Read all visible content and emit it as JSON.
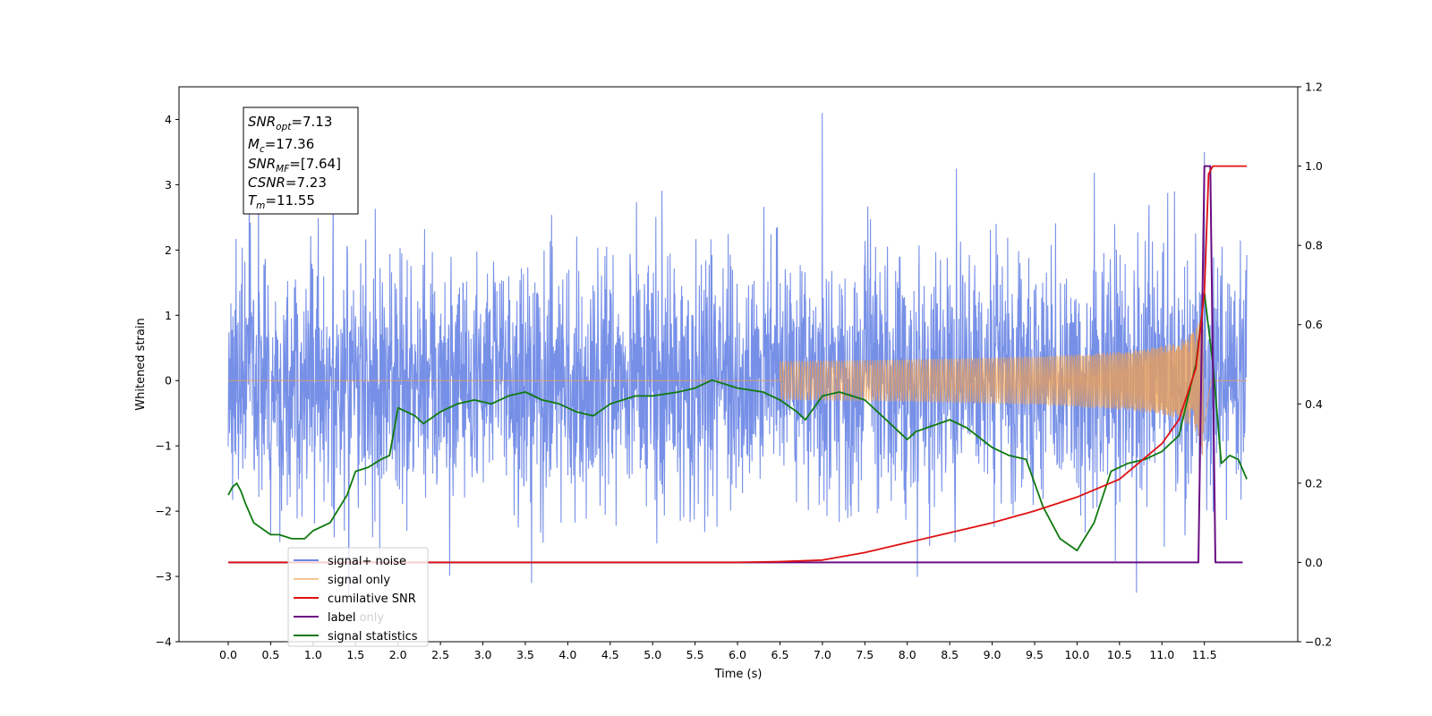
{
  "chart_data": {
    "type": "line",
    "xlabel": "Time (s)",
    "ylabel": "Whitened strain",
    "xlim": [
      -0.58,
      12.6
    ],
    "ylim": [
      -4,
      4.5
    ],
    "y2lim": [
      -0.2,
      1.2
    ],
    "grid": false,
    "legend_position": "lower-left",
    "x_ticks": [
      "0.0",
      "0.5",
      "1.0",
      "1.5",
      "2.0",
      "2.5",
      "3.0",
      "3.5",
      "4.0",
      "4.5",
      "5.0",
      "5.5",
      "6.0",
      "6.5",
      "7.0",
      "7.5",
      "8.0",
      "8.5",
      "9.0",
      "9.5",
      "10.0",
      "10.5",
      "11.0",
      "11.5"
    ],
    "y_ticks": [
      "4",
      "3",
      "2",
      "1",
      "0",
      "−1",
      "−2",
      "−3",
      "−4"
    ],
    "y2_ticks": [
      "1.2",
      "1.0",
      "0.8",
      "0.6",
      "0.4",
      "0.2",
      "0.0",
      "−0.2"
    ],
    "annotation": {
      "snr_opt": {
        "sym": "SNR",
        "sub": "opt",
        "val": "=7.13"
      },
      "mc": {
        "sym": "M",
        "sub": "c",
        "val": "=17.36"
      },
      "snr_mf": {
        "sym": "SNR",
        "sub": "MF",
        "val": "=[7.64]"
      },
      "csnr": {
        "sym": "CSNR",
        "val": "=7.23"
      },
      "tm": {
        "sym": "T",
        "sub": "m",
        "val": "=11.55"
      }
    },
    "series": [
      {
        "name": "signal+ noise",
        "color": "#6b87e5",
        "axis": "left",
        "t_range": [
          0.0,
          12.0
        ],
        "n_samples": 3000,
        "noise_sigma": 1.0,
        "band_envelope": [
          -1.6,
          1.6
        ],
        "notable_peaks": [
          [
            7.0,
            4.1
          ],
          [
            0.25,
            3.5
          ],
          [
            11.5,
            3.5
          ],
          [
            1.42,
            -3.3
          ],
          [
            10.7,
            -3.25
          ]
        ]
      },
      {
        "name": "signal only",
        "color": "#f0a050",
        "axis": "left",
        "chirp_start": 6.5,
        "chirp_peak_time": 11.5,
        "chirp_peak_amplitude": 1.35,
        "end_time": 12.0
      },
      {
        "name": "cumilative SNR",
        "color": "#e01010",
        "axis": "right",
        "x": [
          0.0,
          6.0,
          6.5,
          7.0,
          7.5,
          8.0,
          8.5,
          9.0,
          9.5,
          10.0,
          10.5,
          11.0,
          11.2,
          11.4,
          11.5,
          11.55,
          11.6,
          12.0
        ],
        "values": [
          0.0,
          0.0,
          0.002,
          0.006,
          0.025,
          0.05,
          0.075,
          0.1,
          0.13,
          0.165,
          0.21,
          0.3,
          0.36,
          0.49,
          0.68,
          0.98,
          1.0,
          1.0
        ]
      },
      {
        "name": "label",
        "color": "#6a0d83",
        "axis": "right",
        "x": [
          0.0,
          11.43,
          11.5,
          11.57,
          11.63,
          11.95
        ],
        "values": [
          0.0,
          0.0,
          1.0,
          1.0,
          0.0,
          0.0
        ]
      },
      {
        "name": "label only",
        "color": "#cccccc",
        "axis": "right",
        "x": [],
        "values": []
      },
      {
        "name": "signal statistics",
        "color": "#0f7a0f",
        "axis": "right",
        "x": [
          0.0,
          0.05,
          0.1,
          0.15,
          0.2,
          0.3,
          0.5,
          0.6,
          0.75,
          0.9,
          1.0,
          1.2,
          1.4,
          1.5,
          1.65,
          1.8,
          1.9,
          2.0,
          2.2,
          2.3,
          2.5,
          2.7,
          2.9,
          3.1,
          3.3,
          3.5,
          3.7,
          3.9,
          4.1,
          4.3,
          4.5,
          4.8,
          5.0,
          5.3,
          5.5,
          5.7,
          6.0,
          6.3,
          6.5,
          6.7,
          6.8,
          7.0,
          7.2,
          7.5,
          7.8,
          7.9,
          8.0,
          8.1,
          8.5,
          8.7,
          9.0,
          9.2,
          9.4,
          9.6,
          9.8,
          10.0,
          10.2,
          10.4,
          10.6,
          10.8,
          11.0,
          11.2,
          11.4,
          11.5,
          11.6,
          11.7,
          11.8,
          11.9,
          12.0
        ],
        "values": [
          0.17,
          0.19,
          0.2,
          0.18,
          0.15,
          0.1,
          0.07,
          0.07,
          0.06,
          0.06,
          0.08,
          0.1,
          0.17,
          0.23,
          0.24,
          0.26,
          0.27,
          0.39,
          0.37,
          0.35,
          0.38,
          0.4,
          0.41,
          0.4,
          0.42,
          0.43,
          0.41,
          0.4,
          0.38,
          0.37,
          0.4,
          0.42,
          0.42,
          0.43,
          0.44,
          0.46,
          0.44,
          0.43,
          0.41,
          0.38,
          0.36,
          0.42,
          0.43,
          0.41,
          0.35,
          0.33,
          0.31,
          0.33,
          0.36,
          0.34,
          0.29,
          0.27,
          0.26,
          0.14,
          0.06,
          0.03,
          0.1,
          0.23,
          0.25,
          0.26,
          0.28,
          0.32,
          0.5,
          0.68,
          0.5,
          0.25,
          0.27,
          0.26,
          0.21
        ]
      }
    ]
  }
}
